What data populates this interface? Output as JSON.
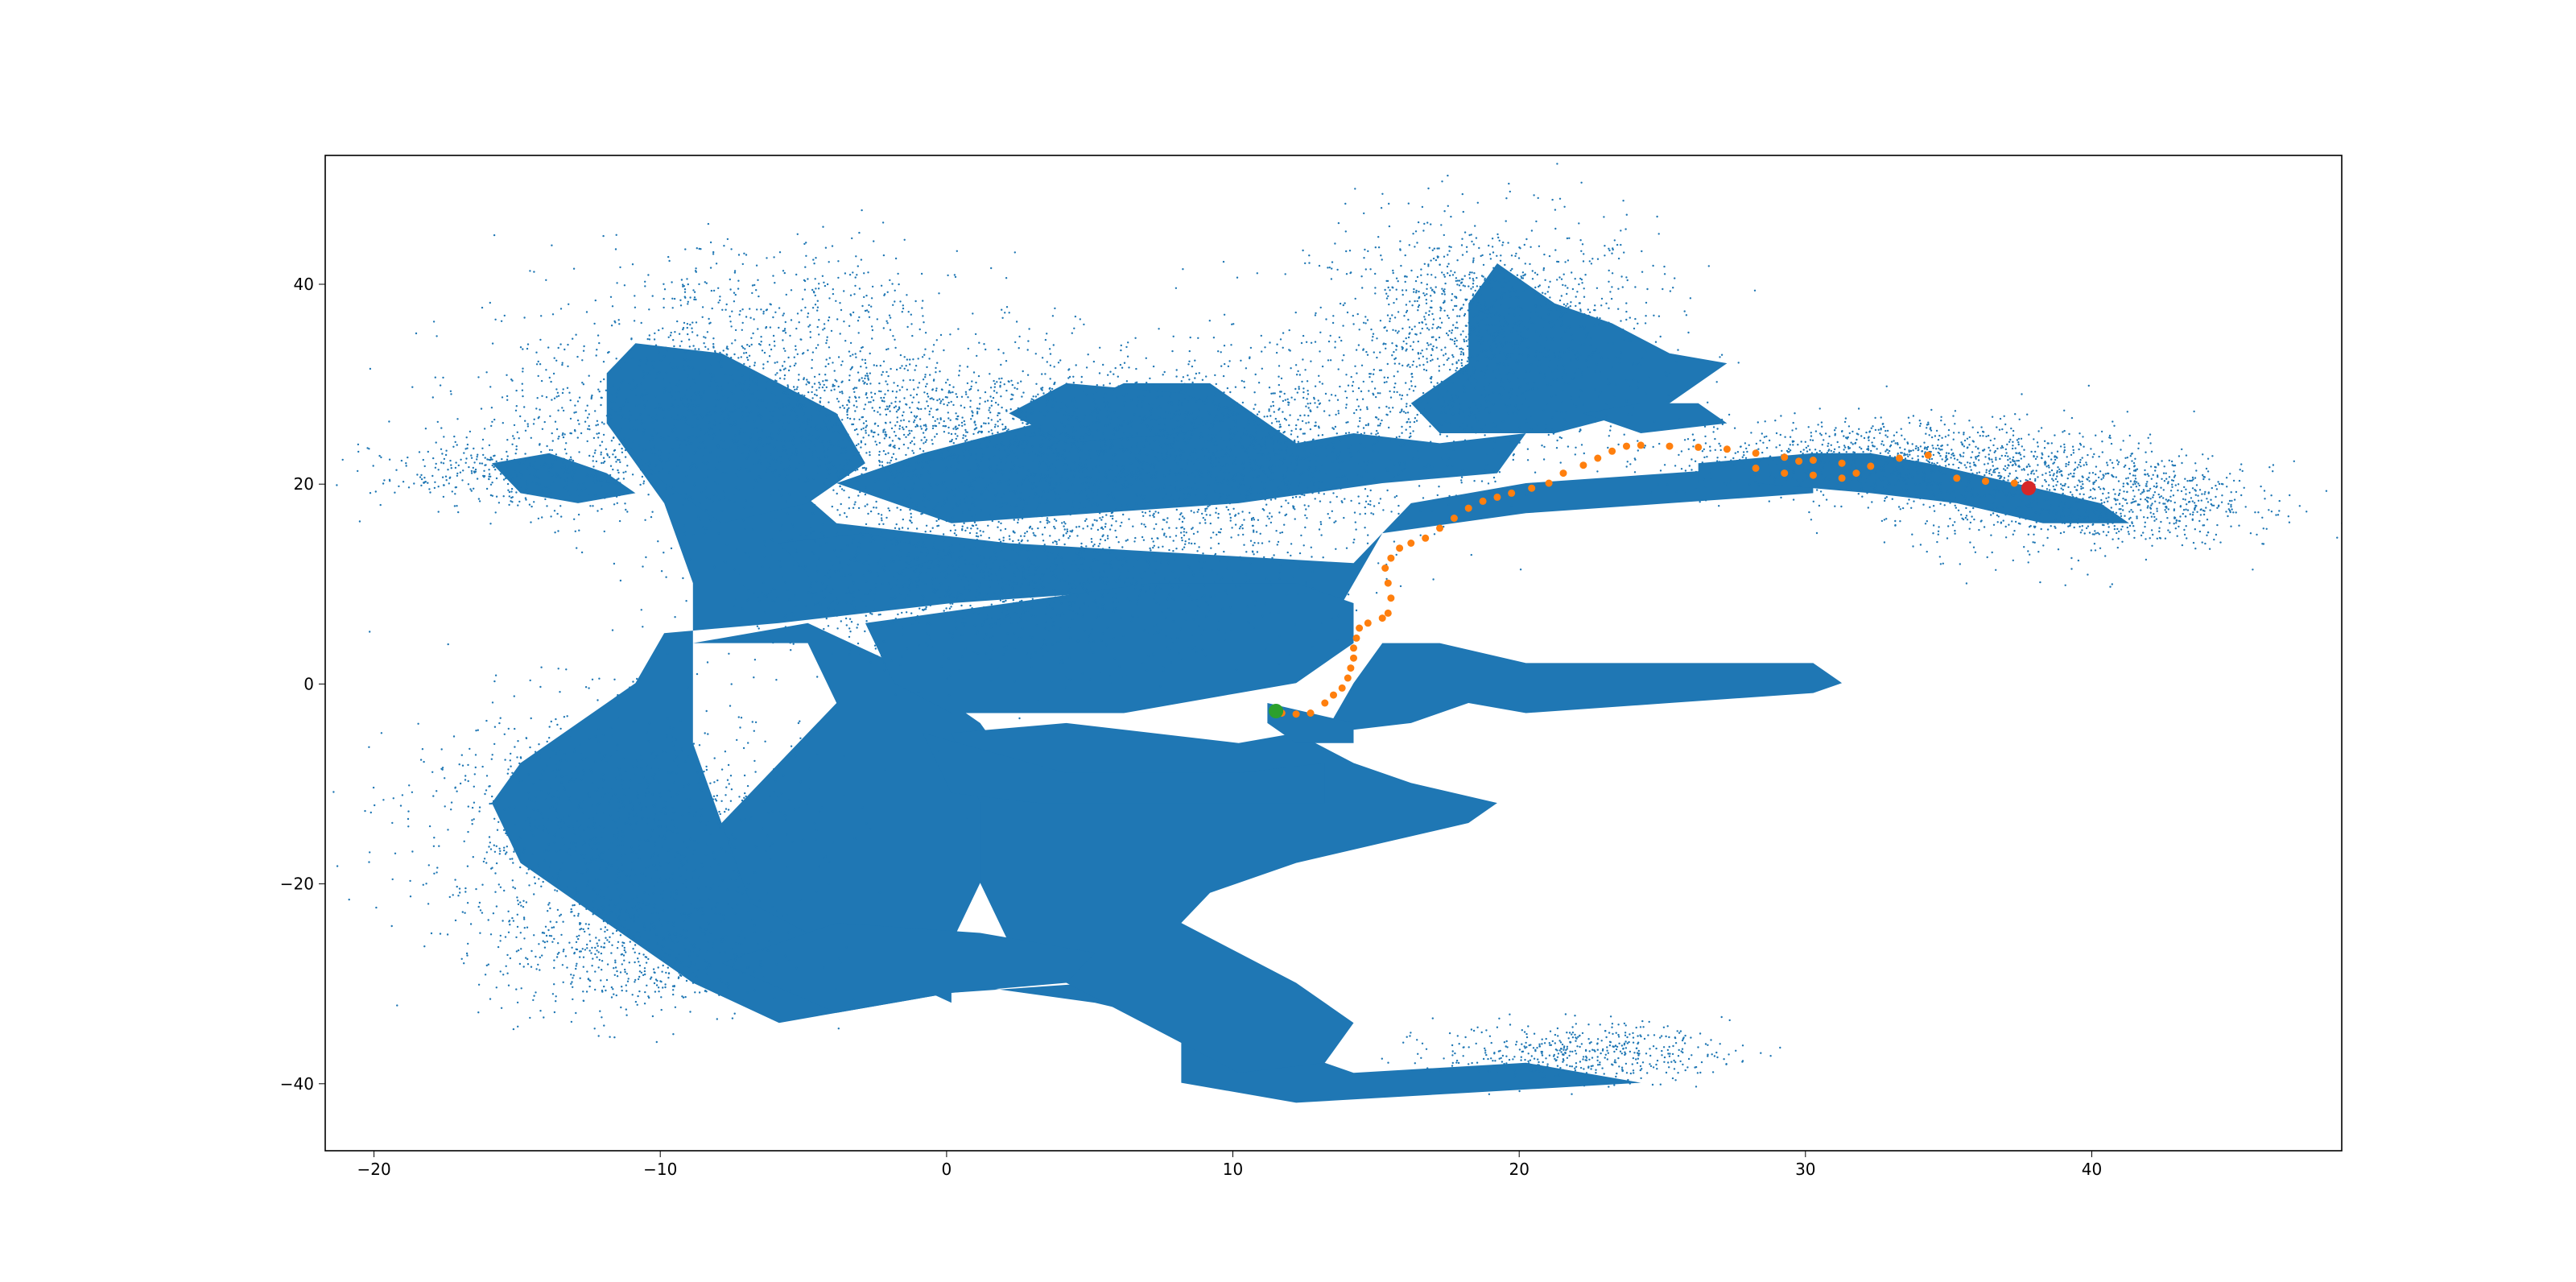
{
  "chart_data": {
    "type": "scatter",
    "title": "",
    "xlabel": "",
    "ylabel": "",
    "xlim": [
      -21.8,
      48.4
    ],
    "ylim": [
      -46.8,
      52.8
    ],
    "x_ticks": [
      -20,
      -10,
      0,
      10,
      20,
      30,
      40
    ],
    "y_ticks": [
      -40,
      -20,
      0,
      20,
      40
    ],
    "x_tick_labels": [
      "−20",
      "−10",
      "0",
      "10",
      "20",
      "30",
      "40"
    ],
    "y_tick_labels": [
      "−40",
      "−20",
      "0",
      "20",
      "40"
    ],
    "grid": false,
    "legend": "none",
    "map_color": "#1f77b4",
    "map_regions": [
      {
        "points": [
          [
            -11,
            30
          ],
          [
            -8,
            27
          ],
          [
            -6,
            21
          ],
          [
            -4,
            16
          ],
          [
            2,
            14
          ],
          [
            8,
            13
          ],
          [
            14,
            12
          ],
          [
            16,
            18
          ],
          [
            20,
            20
          ],
          [
            25,
            21
          ],
          [
            30,
            22
          ],
          [
            30,
            19
          ],
          [
            25,
            18
          ],
          [
            20,
            17
          ],
          [
            15,
            15
          ],
          [
            14,
            10
          ],
          [
            13,
            5
          ],
          [
            10,
            7
          ],
          [
            5,
            9
          ],
          [
            0,
            8
          ],
          [
            -6,
            6
          ],
          [
            -10,
            5
          ],
          [
            -11,
            0
          ],
          [
            -13,
            -4
          ],
          [
            -15,
            -8
          ],
          [
            -16,
            -12
          ],
          [
            -15,
            -18
          ],
          [
            -12,
            -24
          ],
          [
            -9,
            -30
          ],
          [
            -6,
            -34
          ],
          [
            0,
            -31
          ],
          [
            5,
            -30
          ],
          [
            9,
            -31
          ],
          [
            11,
            -36
          ],
          [
            14,
            -39
          ],
          [
            20,
            -38
          ],
          [
            24,
            -40
          ],
          [
            18,
            -41
          ],
          [
            12,
            -42
          ],
          [
            8,
            -40
          ],
          [
            8,
            -34
          ],
          [
            5,
            -32
          ],
          [
            0,
            -30
          ],
          [
            -3,
            -28
          ],
          [
            -6,
            -22
          ],
          [
            -8,
            -14
          ],
          [
            -9,
            -6
          ],
          [
            -9,
            2
          ],
          [
            -9,
            10
          ],
          [
            -10,
            18
          ],
          [
            -12,
            26
          ]
        ]
      },
      {
        "points": [
          [
            -9,
            4
          ],
          [
            -5,
            4
          ],
          [
            -4,
            -2
          ],
          [
            -6,
            -8
          ],
          [
            -8,
            -14
          ],
          [
            -7,
            -22
          ],
          [
            -3,
            -28
          ],
          [
            0,
            -32
          ],
          [
            0,
            -26
          ],
          [
            1,
            -20
          ],
          [
            2,
            -14
          ],
          [
            2,
            -8
          ],
          [
            1,
            -4
          ],
          [
            -2,
            2
          ],
          [
            -5,
            6
          ]
        ]
      },
      {
        "points": [
          [
            -3,
            6
          ],
          [
            2,
            8
          ],
          [
            7,
            10
          ],
          [
            12,
            10
          ],
          [
            14,
            8
          ],
          [
            14,
            4
          ],
          [
            12,
            0
          ],
          [
            10,
            -1
          ],
          [
            6,
            -3
          ],
          [
            0,
            -3
          ],
          [
            -2,
            0
          ]
        ]
      },
      {
        "points": [
          [
            0,
            -5
          ],
          [
            4,
            -4
          ],
          [
            10,
            -6
          ],
          [
            12,
            -5
          ],
          [
            14,
            -8
          ],
          [
            16,
            -10
          ],
          [
            19,
            -12
          ],
          [
            18,
            -14
          ],
          [
            15,
            -16
          ],
          [
            12,
            -18
          ],
          [
            9,
            -21
          ],
          [
            8,
            -24
          ],
          [
            10,
            -27
          ],
          [
            12,
            -30
          ],
          [
            14,
            -34
          ],
          [
            13,
            -38
          ],
          [
            10,
            -39
          ],
          [
            8,
            -36
          ],
          [
            6,
            -33
          ],
          [
            4,
            -30
          ],
          [
            2,
            -26
          ],
          [
            1,
            -20
          ],
          [
            1,
            -12
          ]
        ]
      },
      {
        "points": [
          [
            -1,
            -5
          ],
          [
            4,
            -9
          ],
          [
            10,
            -9
          ],
          [
            13,
            -8
          ],
          [
            13,
            -12
          ],
          [
            8,
            -12
          ],
          [
            3,
            -12
          ],
          [
            0,
            -11
          ]
        ]
      },
      {
        "points": [
          [
            -8,
            -28
          ],
          [
            -4,
            -33
          ],
          [
            0,
            -31
          ],
          [
            4,
            -30
          ],
          [
            5,
            -27
          ],
          [
            1,
            -25
          ],
          [
            -4,
            -24
          ]
        ]
      },
      {
        "points": [
          [
            13,
            -5
          ],
          [
            16,
            -4
          ],
          [
            18,
            -2
          ],
          [
            20,
            -3
          ],
          [
            25,
            -2
          ],
          [
            30,
            -1
          ],
          [
            31,
            0
          ],
          [
            30,
            2
          ],
          [
            25,
            2
          ],
          [
            20,
            2
          ],
          [
            17,
            4
          ],
          [
            15,
            4
          ],
          [
            14,
            0
          ]
        ]
      },
      {
        "points": [
          [
            11,
            -2
          ],
          [
            14,
            -4
          ],
          [
            14,
            -6
          ],
          [
            12,
            -6
          ],
          [
            11,
            -4
          ]
        ]
      },
      {
        "points": [
          [
            -12,
            31
          ],
          [
            -11,
            34
          ],
          [
            -8,
            33
          ],
          [
            -6,
            30
          ],
          [
            -4,
            27
          ],
          [
            -3,
            22
          ],
          [
            -5,
            18
          ],
          [
            -8,
            16
          ],
          [
            -10,
            20
          ],
          [
            -12,
            26
          ]
        ]
      },
      {
        "points": [
          [
            -4,
            20
          ],
          [
            -1,
            23
          ],
          [
            3,
            26
          ],
          [
            6,
            30
          ],
          [
            9,
            30
          ],
          [
            10,
            28
          ],
          [
            12,
            24
          ],
          [
            14,
            25
          ],
          [
            17,
            24
          ],
          [
            20,
            25
          ],
          [
            19,
            21
          ],
          [
            15,
            20
          ],
          [
            10,
            18
          ],
          [
            5,
            17
          ],
          [
            0,
            16
          ]
        ]
      },
      {
        "points": [
          [
            16,
            28
          ],
          [
            18,
            32
          ],
          [
            18,
            38
          ],
          [
            19,
            42
          ],
          [
            21,
            38
          ],
          [
            23,
            36
          ],
          [
            25,
            33
          ],
          [
            27,
            32
          ],
          [
            25,
            28
          ],
          [
            21,
            25
          ],
          [
            19,
            25
          ],
          [
            17,
            25
          ]
        ]
      },
      {
        "points": [
          [
            2,
            27
          ],
          [
            4,
            30
          ],
          [
            8,
            29
          ],
          [
            10,
            27
          ],
          [
            8,
            25
          ],
          [
            4,
            24
          ]
        ]
      },
      {
        "points": [
          [
            26,
            22
          ],
          [
            30,
            23
          ],
          [
            32,
            23
          ],
          [
            34,
            22
          ],
          [
            37,
            20
          ],
          [
            40,
            18
          ],
          [
            41,
            16
          ],
          [
            38,
            16
          ],
          [
            35,
            18
          ],
          [
            32,
            19
          ],
          [
            28,
            20
          ],
          [
            26,
            20
          ]
        ]
      },
      {
        "points": [
          [
            -16,
            22
          ],
          [
            -14,
            23
          ],
          [
            -12,
            21
          ],
          [
            -11,
            19
          ],
          [
            -13,
            18
          ],
          [
            -15,
            19
          ]
        ]
      },
      {
        "points": [
          [
            -6,
            14
          ],
          [
            -3,
            15
          ],
          [
            0,
            13
          ],
          [
            -2,
            11
          ],
          [
            -5,
            11
          ]
        ]
      },
      {
        "points": [
          [
            22,
            27
          ],
          [
            24,
            28
          ],
          [
            26,
            28
          ],
          [
            27,
            26
          ],
          [
            24,
            25
          ]
        ]
      }
    ],
    "series": [
      {
        "color": "#1f77b4",
        "marker_size": 1.2,
        "clouds": [
          {
            "cx": 18.5,
            "cy": 34.5,
            "sx": 3.0,
            "sy": 6.0,
            "n": 1500
          },
          {
            "cx": -7,
            "cy": 27,
            "sx": 4.5,
            "sy": 5.0,
            "n": 1800
          },
          {
            "cx": -15,
            "cy": 21,
            "sx": 2.5,
            "sy": 1.8,
            "n": 400
          },
          {
            "cx": 3,
            "cy": 23,
            "sx": 4.0,
            "sy": 5.0,
            "n": 1400
          },
          {
            "cx": 10,
            "cy": 23,
            "sx": 3.5,
            "sy": 4.5,
            "n": 1200
          },
          {
            "cx": 32,
            "cy": 22.5,
            "sx": 3.5,
            "sy": 2.0,
            "n": 900
          },
          {
            "cx": 38.5,
            "cy": 19,
            "sx": 3.0,
            "sy": 3.0,
            "n": 900
          },
          {
            "cx": 42.5,
            "cy": 18,
            "sx": 1.8,
            "sy": 2.0,
            "n": 220
          },
          {
            "cx": -6,
            "cy": 39,
            "sx": 3.5,
            "sy": 3.0,
            "n": 260
          },
          {
            "cx": 2,
            "cy": 10,
            "sx": 5.0,
            "sy": 4.0,
            "n": 1500
          },
          {
            "cx": -12,
            "cy": -14,
            "sx": 3.5,
            "sy": 6.0,
            "n": 1100
          },
          {
            "cx": 22,
            "cy": -37,
            "sx": 2.5,
            "sy": 1.5,
            "n": 500
          },
          {
            "cx": -11,
            "cy": -27,
            "sx": 2.5,
            "sy": 3.5,
            "n": 600
          }
        ]
      },
      {
        "color": "#ff7f0e",
        "marker_size": 4.5,
        "points": [
          [
            11.5,
            -3.0
          ],
          [
            12,
            -3.1
          ],
          [
            12.5,
            -3.0
          ],
          [
            13,
            -2
          ],
          [
            13.3,
            -1.2
          ],
          [
            13.6,
            -0.5
          ],
          [
            13.8,
            0.5
          ],
          [
            13.9,
            1.5
          ],
          [
            14,
            2.5
          ],
          [
            14,
            3.5
          ],
          [
            14.1,
            4.5
          ],
          [
            14.2,
            5.5
          ],
          [
            14.5,
            6
          ],
          [
            15,
            6.5
          ],
          [
            15.2,
            7
          ],
          [
            15.3,
            8.5
          ],
          [
            15.2,
            10
          ],
          [
            15.1,
            11.5
          ],
          [
            15.3,
            12.5
          ],
          [
            15.6,
            13.5
          ],
          [
            16,
            14
          ],
          [
            16.5,
            14.5
          ],
          [
            17,
            15.5
          ],
          [
            17.5,
            16.5
          ],
          [
            18,
            17.5
          ],
          [
            18.5,
            18.2
          ],
          [
            19,
            18.6
          ],
          [
            19.5,
            19
          ],
          [
            20.2,
            19.5
          ],
          [
            20.8,
            20
          ],
          [
            21.3,
            21
          ],
          [
            22,
            21.8
          ],
          [
            22.5,
            22.5
          ],
          [
            23,
            23.2
          ],
          [
            23.5,
            23.7
          ],
          [
            24,
            23.8
          ],
          [
            25,
            23.7
          ],
          [
            26,
            23.6
          ],
          [
            27,
            23.4
          ],
          [
            28,
            23.0
          ],
          [
            29,
            22.6
          ],
          [
            30,
            22.3
          ],
          [
            31,
            22.0
          ],
          [
            32,
            21.7
          ],
          [
            31.5,
            21
          ],
          [
            31,
            20.5
          ],
          [
            30,
            20.8
          ],
          [
            29,
            21.0
          ],
          [
            28,
            21.5
          ],
          [
            29.5,
            22.2
          ],
          [
            33,
            22.5
          ],
          [
            34,
            22.8
          ],
          [
            35,
            20.5
          ],
          [
            36,
            20.2
          ],
          [
            37,
            20
          ]
        ]
      },
      {
        "color": "#2ca02c",
        "marker_size": 9,
        "points": [
          [
            11.3,
            -2.8
          ]
        ]
      },
      {
        "color": "#d62728",
        "marker_size": 9,
        "points": [
          [
            37.5,
            19.5
          ]
        ]
      }
    ]
  }
}
